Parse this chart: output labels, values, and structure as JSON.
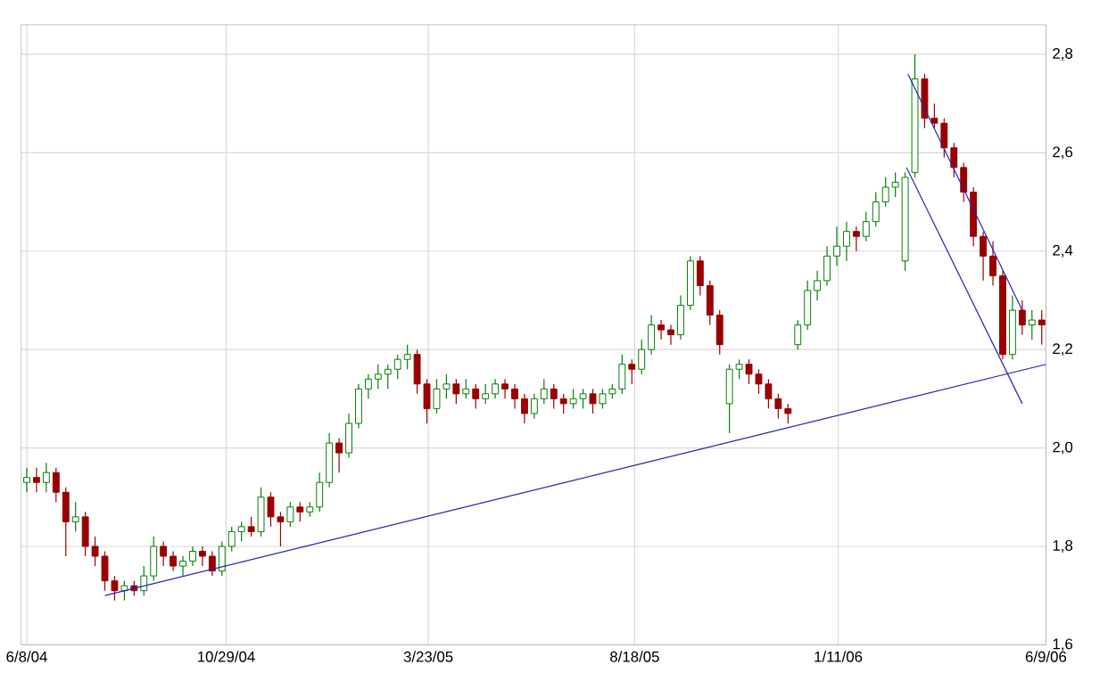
{
  "chart_data": {
    "type": "candlestick",
    "x": [
      "2004-06-08",
      "2004-06-15",
      "2004-06-22",
      "2004-06-29",
      "2004-07-06",
      "2004-07-13",
      "2004-07-20",
      "2004-07-27",
      "2004-08-03",
      "2004-08-10",
      "2004-08-17",
      "2004-08-24",
      "2004-08-31",
      "2004-09-07",
      "2004-09-14",
      "2004-09-21",
      "2004-09-28",
      "2004-10-05",
      "2004-10-12",
      "2004-10-19",
      "2004-10-26",
      "2004-11-02",
      "2004-11-09",
      "2004-11-16",
      "2004-11-23",
      "2004-11-30",
      "2004-12-07",
      "2004-12-14",
      "2004-12-21",
      "2004-12-28",
      "2005-01-04",
      "2005-01-11",
      "2005-01-18",
      "2005-01-25",
      "2005-02-01",
      "2005-02-08",
      "2005-02-15",
      "2005-02-22",
      "2005-03-01",
      "2005-03-08",
      "2005-03-15",
      "2005-03-22",
      "2005-03-29",
      "2005-04-05",
      "2005-04-12",
      "2005-04-19",
      "2005-04-26",
      "2005-05-03",
      "2005-05-10",
      "2005-05-17",
      "2005-05-24",
      "2005-05-31",
      "2005-06-07",
      "2005-06-14",
      "2005-06-21",
      "2005-06-28",
      "2005-07-05",
      "2005-07-12",
      "2005-07-19",
      "2005-07-26",
      "2005-08-02",
      "2005-08-09",
      "2005-08-16",
      "2005-08-23",
      "2005-08-30",
      "2005-09-06",
      "2005-09-13",
      "2005-09-20",
      "2005-09-27",
      "2005-10-04",
      "2005-10-11",
      "2005-10-18",
      "2005-10-25",
      "2005-11-01",
      "2005-11-08",
      "2005-11-15",
      "2005-11-22",
      "2005-11-29",
      "2005-12-06",
      "2005-12-13",
      "2005-12-20",
      "2005-12-27",
      "2006-01-03",
      "2006-01-10",
      "2006-01-17",
      "2006-01-24",
      "2006-01-31",
      "2006-02-07",
      "2006-02-14",
      "2006-02-21",
      "2006-02-28",
      "2006-03-07",
      "2006-03-14",
      "2006-03-21",
      "2006-03-28",
      "2006-04-04",
      "2006-04-11",
      "2006-04-18",
      "2006-04-25",
      "2006-05-02",
      "2006-05-09",
      "2006-05-16",
      "2006-05-23",
      "2006-05-30",
      "2006-06-06"
    ],
    "ohlc": [
      [
        1.93,
        1.96,
        1.91,
        1.94
      ],
      [
        1.94,
        1.96,
        1.91,
        1.93
      ],
      [
        1.93,
        1.97,
        1.91,
        1.95
      ],
      [
        1.95,
        1.96,
        1.89,
        1.91
      ],
      [
        1.91,
        1.92,
        1.78,
        1.85
      ],
      [
        1.85,
        1.89,
        1.83,
        1.86
      ],
      [
        1.86,
        1.87,
        1.78,
        1.8
      ],
      [
        1.8,
        1.82,
        1.76,
        1.78
      ],
      [
        1.78,
        1.79,
        1.71,
        1.73
      ],
      [
        1.73,
        1.74,
        1.69,
        1.71
      ],
      [
        1.71,
        1.73,
        1.69,
        1.72
      ],
      [
        1.72,
        1.73,
        1.7,
        1.71
      ],
      [
        1.71,
        1.76,
        1.7,
        1.74
      ],
      [
        1.74,
        1.82,
        1.73,
        1.8
      ],
      [
        1.8,
        1.81,
        1.76,
        1.78
      ],
      [
        1.78,
        1.79,
        1.75,
        1.76
      ],
      [
        1.76,
        1.78,
        1.74,
        1.77
      ],
      [
        1.77,
        1.8,
        1.76,
        1.79
      ],
      [
        1.79,
        1.8,
        1.76,
        1.78
      ],
      [
        1.78,
        1.79,
        1.74,
        1.75
      ],
      [
        1.75,
        1.81,
        1.74,
        1.8
      ],
      [
        1.8,
        1.84,
        1.79,
        1.83
      ],
      [
        1.83,
        1.85,
        1.81,
        1.84
      ],
      [
        1.84,
        1.86,
        1.82,
        1.83
      ],
      [
        1.83,
        1.92,
        1.82,
        1.9
      ],
      [
        1.9,
        1.91,
        1.84,
        1.86
      ],
      [
        1.86,
        1.87,
        1.8,
        1.85
      ],
      [
        1.85,
        1.89,
        1.84,
        1.88
      ],
      [
        1.88,
        1.89,
        1.85,
        1.87
      ],
      [
        1.87,
        1.89,
        1.86,
        1.88
      ],
      [
        1.88,
        1.95,
        1.87,
        1.93
      ],
      [
        1.93,
        2.03,
        1.92,
        2.01
      ],
      [
        2.01,
        2.02,
        1.95,
        1.99
      ],
      [
        1.99,
        2.07,
        1.98,
        2.05
      ],
      [
        2.05,
        2.13,
        2.04,
        2.12
      ],
      [
        2.12,
        2.15,
        2.1,
        2.14
      ],
      [
        2.14,
        2.17,
        2.12,
        2.15
      ],
      [
        2.15,
        2.17,
        2.12,
        2.16
      ],
      [
        2.16,
        2.19,
        2.14,
        2.18
      ],
      [
        2.18,
        2.21,
        2.16,
        2.19
      ],
      [
        2.19,
        2.2,
        2.11,
        2.13
      ],
      [
        2.13,
        2.14,
        2.05,
        2.08
      ],
      [
        2.08,
        2.14,
        2.07,
        2.12
      ],
      [
        2.12,
        2.15,
        2.1,
        2.13
      ],
      [
        2.13,
        2.14,
        2.09,
        2.11
      ],
      [
        2.11,
        2.14,
        2.1,
        2.12
      ],
      [
        2.12,
        2.13,
        2.08,
        2.1
      ],
      [
        2.1,
        2.13,
        2.09,
        2.11
      ],
      [
        2.11,
        2.14,
        2.1,
        2.13
      ],
      [
        2.13,
        2.14,
        2.1,
        2.12
      ],
      [
        2.12,
        2.13,
        2.08,
        2.1
      ],
      [
        2.1,
        2.11,
        2.05,
        2.07
      ],
      [
        2.07,
        2.11,
        2.06,
        2.1
      ],
      [
        2.1,
        2.14,
        2.09,
        2.12
      ],
      [
        2.12,
        2.13,
        2.08,
        2.1
      ],
      [
        2.1,
        2.11,
        2.07,
        2.09
      ],
      [
        2.09,
        2.12,
        2.08,
        2.1
      ],
      [
        2.1,
        2.12,
        2.08,
        2.11
      ],
      [
        2.11,
        2.12,
        2.07,
        2.09
      ],
      [
        2.09,
        2.12,
        2.08,
        2.11
      ],
      [
        2.11,
        2.13,
        2.1,
        2.12
      ],
      [
        2.12,
        2.19,
        2.11,
        2.17
      ],
      [
        2.17,
        2.18,
        2.13,
        2.16
      ],
      [
        2.16,
        2.22,
        2.15,
        2.2
      ],
      [
        2.2,
        2.27,
        2.19,
        2.25
      ],
      [
        2.25,
        2.26,
        2.22,
        2.24
      ],
      [
        2.24,
        2.25,
        2.21,
        2.23
      ],
      [
        2.23,
        2.31,
        2.22,
        2.29
      ],
      [
        2.29,
        2.39,
        2.28,
        2.38
      ],
      [
        2.38,
        2.39,
        2.31,
        2.33
      ],
      [
        2.33,
        2.34,
        2.25,
        2.27
      ],
      [
        2.27,
        2.28,
        2.19,
        2.21
      ],
      [
        2.09,
        2.17,
        2.03,
        2.16
      ],
      [
        2.16,
        2.18,
        2.14,
        2.17
      ],
      [
        2.17,
        2.18,
        2.13,
        2.15
      ],
      [
        2.15,
        2.16,
        2.11,
        2.13
      ],
      [
        2.13,
        2.14,
        2.08,
        2.1
      ],
      [
        2.1,
        2.11,
        2.06,
        2.08
      ],
      [
        2.08,
        2.09,
        2.05,
        2.07
      ],
      [
        2.21,
        2.26,
        2.2,
        2.25
      ],
      [
        2.25,
        2.34,
        2.24,
        2.32
      ],
      [
        2.32,
        2.36,
        2.3,
        2.34
      ],
      [
        2.34,
        2.41,
        2.33,
        2.39
      ],
      [
        2.39,
        2.45,
        2.37,
        2.41
      ],
      [
        2.41,
        2.46,
        2.38,
        2.44
      ],
      [
        2.44,
        2.45,
        2.4,
        2.43
      ],
      [
        2.43,
        2.48,
        2.42,
        2.46
      ],
      [
        2.46,
        2.52,
        2.45,
        2.5
      ],
      [
        2.5,
        2.55,
        2.49,
        2.53
      ],
      [
        2.53,
        2.56,
        2.51,
        2.54
      ],
      [
        2.38,
        2.56,
        2.36,
        2.55
      ],
      [
        2.56,
        2.8,
        2.55,
        2.75
      ],
      [
        2.75,
        2.76,
        2.65,
        2.67
      ],
      [
        2.67,
        2.7,
        2.65,
        2.66
      ],
      [
        2.66,
        2.67,
        2.59,
        2.61
      ],
      [
        2.61,
        2.62,
        2.55,
        2.57
      ],
      [
        2.57,
        2.58,
        2.5,
        2.52
      ],
      [
        2.52,
        2.53,
        2.41,
        2.43
      ],
      [
        2.43,
        2.44,
        2.34,
        2.39
      ],
      [
        2.39,
        2.42,
        2.33,
        2.35
      ],
      [
        2.35,
        2.36,
        2.18,
        2.19
      ],
      [
        2.19,
        2.31,
        2.18,
        2.28
      ],
      [
        2.28,
        2.3,
        2.23,
        2.25
      ],
      [
        2.25,
        2.28,
        2.22,
        2.26
      ],
      [
        2.26,
        2.28,
        2.21,
        2.25
      ]
    ],
    "colors": [
      "#008000",
      "#990000",
      "#008000",
      "#990000",
      "#990000",
      "#008000",
      "#990000",
      "#990000",
      "#990000",
      "#990000",
      "#008000",
      "#990000",
      "#008000",
      "#008000",
      "#990000",
      "#990000",
      "#008000",
      "#008000",
      "#990000",
      "#990000",
      "#008000",
      "#008000",
      "#008000",
      "#990000",
      "#008000",
      "#990000",
      "#990000",
      "#008000",
      "#990000",
      "#008000",
      "#008000",
      "#008000",
      "#990000",
      "#008000",
      "#008000",
      "#008000",
      "#008000",
      "#008000",
      "#008000",
      "#008000",
      "#990000",
      "#990000",
      "#008000",
      "#008000",
      "#990000",
      "#008000",
      "#990000",
      "#008000",
      "#008000",
      "#990000",
      "#990000",
      "#990000",
      "#008000",
      "#008000",
      "#990000",
      "#990000",
      "#008000",
      "#008000",
      "#990000",
      "#008000",
      "#008000",
      "#008000",
      "#990000",
      "#008000",
      "#008000",
      "#990000",
      "#990000",
      "#008000",
      "#008000",
      "#990000",
      "#990000",
      "#990000",
      "#008000",
      "#008000",
      "#990000",
      "#990000",
      "#990000",
      "#990000",
      "#990000",
      "#008000",
      "#008000",
      "#008000",
      "#008000",
      "#008000",
      "#008000",
      "#990000",
      "#008000",
      "#008000",
      "#008000",
      "#008000",
      "#008000",
      "#008000",
      "#990000",
      "#990000",
      "#990000",
      "#990000",
      "#990000",
      "#990000",
      "#990000",
      "#990000",
      "#990000",
      "#008000",
      "#990000",
      "#008000",
      "#990000"
    ],
    "series": [
      {
        "type": "line",
        "color": "#2424b4",
        "x": [
          "2004-08-03",
          "2006-06-09"
        ],
        "values": [
          1.7,
          2.17
        ]
      },
      {
        "type": "line",
        "color": "#2424b4",
        "x": [
          "2006-03-02",
          "2006-05-23"
        ],
        "values": [
          2.76,
          2.28
        ]
      },
      {
        "type": "line",
        "color": "#2424b4",
        "x": [
          "2006-03-01",
          "2006-05-23"
        ],
        "values": [
          2.57,
          2.09
        ]
      }
    ],
    "xlim": [
      "2004-06-04",
      "2006-06-09"
    ],
    "xticks": [
      {
        "value": "2004-06-08",
        "label": "6/8/04"
      },
      {
        "value": "2004-10-29",
        "label": "10/29/04"
      },
      {
        "value": "2005-03-23",
        "label": "3/23/05"
      },
      {
        "value": "2005-08-18",
        "label": "8/18/05"
      },
      {
        "value": "2006-01-11",
        "label": "1/11/06"
      },
      {
        "value": "2006-06-09",
        "label": "6/9/06"
      }
    ],
    "ylim": [
      1.6,
      2.86
    ],
    "yticks": [
      {
        "value": 1.6,
        "label": "1,6"
      },
      {
        "value": 1.8,
        "label": "1,8"
      },
      {
        "value": 2.0,
        "label": "2,0"
      },
      {
        "value": 2.2,
        "label": "2,2"
      },
      {
        "value": 2.4,
        "label": "2,4"
      },
      {
        "value": 2.6,
        "label": "2,6"
      },
      {
        "value": 2.8,
        "label": "2,8"
      }
    ],
    "grid": true
  }
}
